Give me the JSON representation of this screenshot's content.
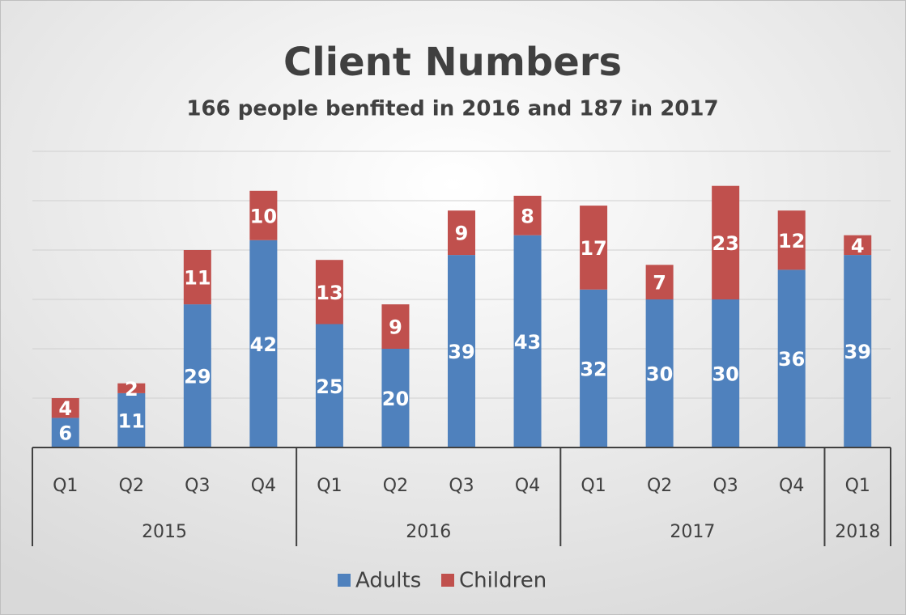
{
  "chart_data": {
    "type": "stacked_bar",
    "title": "Client Numbers",
    "subtitle": "166 people benfited in 2016 and 187 in 2017",
    "groups": [
      {
        "name": "2015",
        "categories": [
          "Q1",
          "Q2",
          "Q3",
          "Q4"
        ]
      },
      {
        "name": "2016",
        "categories": [
          "Q1",
          "Q2",
          "Q3",
          "Q4"
        ]
      },
      {
        "name": "2017",
        "categories": [
          "Q1",
          "Q2",
          "Q3",
          "Q4"
        ]
      },
      {
        "name": "2018",
        "categories": [
          "Q1"
        ]
      }
    ],
    "series": [
      {
        "name": "Adults",
        "color": "#4f81bd",
        "values": [
          6,
          11,
          29,
          42,
          25,
          20,
          39,
          43,
          32,
          30,
          30,
          36,
          39
        ]
      },
      {
        "name": "Children",
        "color": "#c0504d",
        "values": [
          4,
          2,
          11,
          10,
          13,
          9,
          9,
          8,
          17,
          7,
          23,
          12,
          4
        ]
      }
    ],
    "ylim": [
      0,
      60
    ],
    "yticks": [
      0,
      10,
      20,
      30,
      40,
      50,
      60
    ],
    "grid": true,
    "legend": "bottom"
  }
}
